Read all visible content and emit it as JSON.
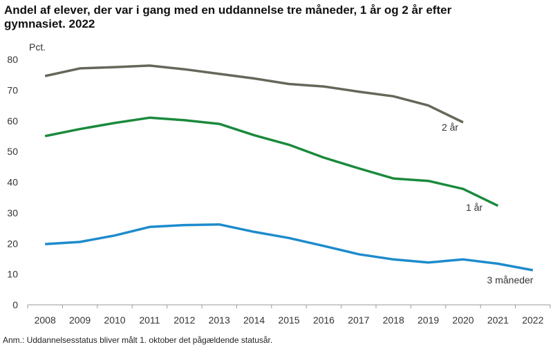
{
  "chart_data": {
    "type": "line",
    "title": "Andel af elever, der var i gang med en uddannelse tre måneder, 1 år og 2 år efter gymnasiet. 2022",
    "title_lines": [
      "Andel af elever, der var i gang med en uddannelse tre måneder, 1 år og 2 år efter",
      "gymnasiet. 2022"
    ],
    "y_label": "Pct.",
    "note": "Anm.: Uddannelsesstatus bliver målt 1. oktober det pågældende statusår.",
    "categories": [
      "2008",
      "2009",
      "2010",
      "2011",
      "2012",
      "2013",
      "2014",
      "2015",
      "2016",
      "2017",
      "2018",
      "2019",
      "2020",
      "2021",
      "2022"
    ],
    "series": [
      {
        "name": "2 år",
        "color": "#66665a",
        "values": [
          74.6,
          77.1,
          77.5,
          78,
          76.8,
          75.3,
          73.8,
          72,
          71.2,
          69.5,
          68,
          65,
          59.5,
          null,
          null
        ]
      },
      {
        "name": "1 år",
        "color": "#1a8a3c",
        "values": [
          55,
          57.3,
          59.3,
          61,
          60.2,
          59,
          55.3,
          52.2,
          48,
          44.5,
          41.2,
          40.4,
          37.8,
          32.3,
          null
        ]
      },
      {
        "name": "3 måneder",
        "color": "#1d8bcc",
        "values": [
          19.8,
          20.5,
          22.6,
          25.4,
          26,
          26.2,
          23.8,
          21.8,
          19.2,
          16.5,
          14.8,
          13.8,
          14.8,
          13.4,
          11.3
        ]
      }
    ],
    "ylim": [
      0,
      80
    ],
    "yticks": [
      0,
      10,
      20,
      30,
      40,
      50,
      60,
      70,
      80
    ],
    "grid": false
  }
}
